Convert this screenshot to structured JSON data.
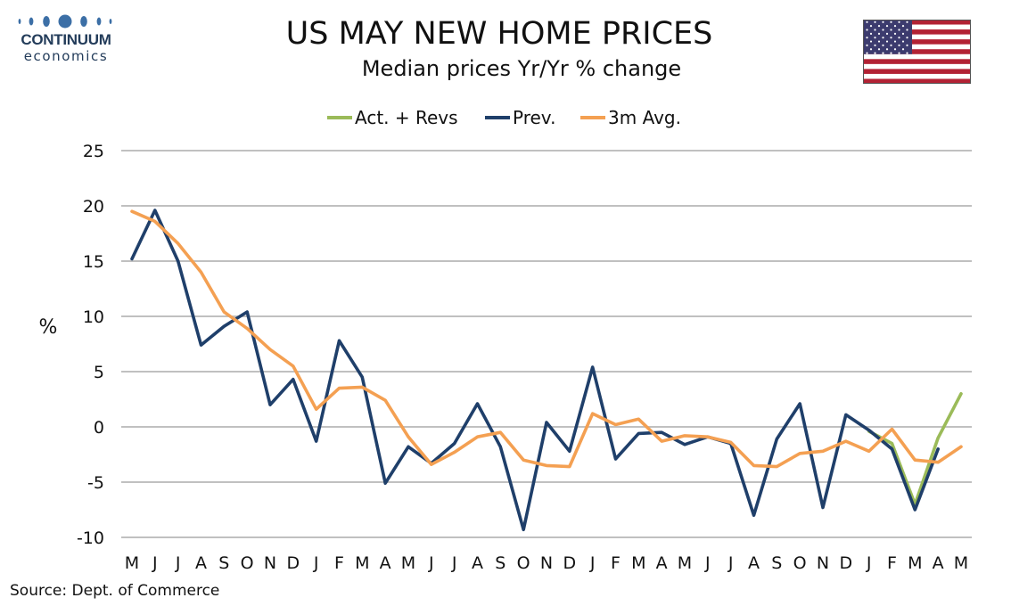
{
  "logo": {
    "brand": "CONTINUUM",
    "sub": "economics"
  },
  "header": {
    "title": "US MAY NEW HOME PRICES",
    "subtitle": "Median prices Yr/Yr % change"
  },
  "flag": {
    "name": "us-flag-icon"
  },
  "source": "Source: Dept. of Commerce",
  "colors": {
    "act": "#9bbb59",
    "prev": "#1f3f6a",
    "avg": "#f4a052",
    "grid": "#c0c0c0"
  },
  "chart_data": {
    "type": "line",
    "title": "US MAY NEW HOME PRICES",
    "subtitle": "Median prices Yr/Yr % change",
    "xlabel": "",
    "ylabel": "%",
    "ylim": [
      -10,
      25
    ],
    "yticks": [
      25,
      20,
      15,
      10,
      5,
      0,
      -5,
      -10
    ],
    "grid": true,
    "legend_position": "top",
    "categories": [
      "M",
      "J",
      "J",
      "A",
      "S",
      "O",
      "N",
      "D",
      "J",
      "F",
      "M",
      "A",
      "M",
      "J",
      "J",
      "A",
      "S",
      "O",
      "N",
      "D",
      "J",
      "F",
      "M",
      "A",
      "M",
      "J",
      "J",
      "A",
      "S",
      "O",
      "N",
      "D",
      "J",
      "F",
      "M",
      "A",
      "M"
    ],
    "series": [
      {
        "name": "Act. + Revs",
        "color": "#9bbb59",
        "values": [
          null,
          null,
          null,
          null,
          null,
          null,
          null,
          null,
          null,
          null,
          null,
          null,
          null,
          null,
          null,
          null,
          null,
          null,
          null,
          null,
          null,
          null,
          null,
          null,
          null,
          null,
          null,
          null,
          null,
          null,
          null,
          null,
          -0.4,
          -1.5,
          -7.0,
          -1.0,
          3.0
        ]
      },
      {
        "name": "Prev.",
        "color": "#1f3f6a",
        "values": [
          15.2,
          19.6,
          15.0,
          7.4,
          9.1,
          10.4,
          2.0,
          4.3,
          -1.3,
          7.8,
          4.5,
          -5.1,
          -1.8,
          -3.3,
          -1.5,
          2.1,
          -1.8,
          -9.3,
          0.4,
          -2.2,
          5.4,
          -2.9,
          -0.6,
          -0.5,
          -1.6,
          -0.9,
          -1.5,
          -8.0,
          -1.1,
          2.1,
          -7.3,
          1.1,
          -0.3,
          -2.0,
          -7.5,
          -2.0,
          null
        ]
      },
      {
        "name": "3m Avg.",
        "color": "#f4a052",
        "values": [
          19.5,
          18.6,
          16.6,
          14.0,
          10.4,
          8.9,
          7.0,
          5.5,
          1.6,
          3.5,
          3.6,
          2.4,
          -0.9,
          -3.4,
          -2.3,
          -0.9,
          -0.5,
          -3.0,
          -3.5,
          -3.6,
          1.2,
          0.2,
          0.7,
          -1.3,
          -0.8,
          -0.9,
          -1.4,
          -3.5,
          -3.6,
          -2.4,
          -2.2,
          -1.3,
          -2.2,
          -0.2,
          -3.0,
          -3.2,
          -1.8
        ]
      }
    ]
  }
}
